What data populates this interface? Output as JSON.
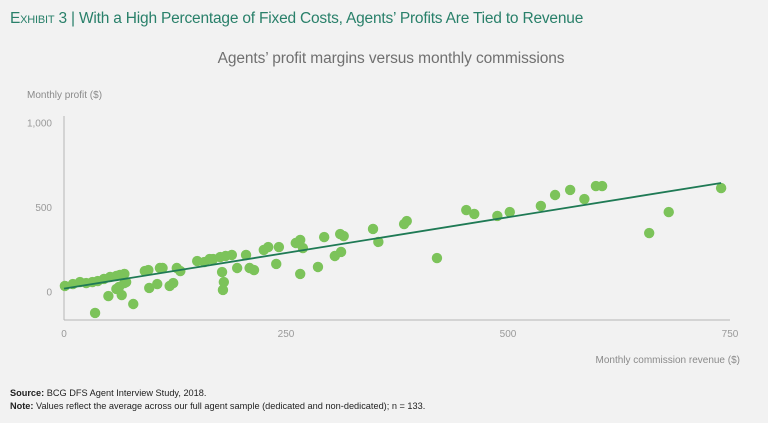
{
  "header": {
    "exhibit_label": "Exhibit 3",
    "separator": "|",
    "exhibit_title": "With a High Percentage of Fixed Costs, Agents’ Profits Are Tied to Revenue"
  },
  "footer": {
    "source_label": "Source:",
    "source_text": " BCG DFS Agent Interview Study, 2018.",
    "note_label": "Note:",
    "note_text": " Values reflect the average across our full agent sample (dedicated and non-dedicated); n = 133."
  },
  "colors": {
    "title": "#29806a",
    "points": "#7cc35a",
    "trendline": "#1f7a55",
    "axis": "#b5b5b5",
    "background": "#f2f2f2"
  },
  "chart_data": {
    "type": "scatter",
    "title": "Agents’ profit margins versus monthly commissions",
    "xlabel": "Monthly commission revenue ($)",
    "ylabel": "Monthly profit ($)",
    "xlim": [
      0,
      750
    ],
    "ylim": [
      -160,
      1000
    ],
    "xticks": [
      0,
      250,
      500,
      750
    ],
    "xtick_labels": [
      "0",
      "250",
      "500",
      "750"
    ],
    "yticks": [
      0,
      500,
      1000
    ],
    "ytick_labels": [
      "0",
      "500",
      "1,000"
    ],
    "grid": false,
    "legend": "none",
    "trendline": {
      "x": [
        0,
        740
      ],
      "y": [
        20,
        645
      ]
    },
    "points": [
      {
        "x": 1,
        "y": 36
      },
      {
        "x": 10,
        "y": 47
      },
      {
        "x": 18,
        "y": 59
      },
      {
        "x": 25,
        "y": 53
      },
      {
        "x": 32,
        "y": 59
      },
      {
        "x": 38,
        "y": 65
      },
      {
        "x": 45,
        "y": 77
      },
      {
        "x": 52,
        "y": 89
      },
      {
        "x": 59,
        "y": 95
      },
      {
        "x": 63,
        "y": 101
      },
      {
        "x": 68,
        "y": 107
      },
      {
        "x": 50,
        "y": -24
      },
      {
        "x": 65,
        "y": -18
      },
      {
        "x": 35,
        "y": -124
      },
      {
        "x": 78,
        "y": -71
      },
      {
        "x": 59,
        "y": 18
      },
      {
        "x": 62,
        "y": 30
      },
      {
        "x": 68,
        "y": 53
      },
      {
        "x": 70,
        "y": 59
      },
      {
        "x": 91,
        "y": 124
      },
      {
        "x": 95,
        "y": 130
      },
      {
        "x": 108,
        "y": 142
      },
      {
        "x": 111,
        "y": 142
      },
      {
        "x": 96,
        "y": 24
      },
      {
        "x": 105,
        "y": 47
      },
      {
        "x": 119,
        "y": 36
      },
      {
        "x": 123,
        "y": 53
      },
      {
        "x": 127,
        "y": 142
      },
      {
        "x": 131,
        "y": 124
      },
      {
        "x": 150,
        "y": 183
      },
      {
        "x": 158,
        "y": 177
      },
      {
        "x": 164,
        "y": 195
      },
      {
        "x": 168,
        "y": 195
      },
      {
        "x": 176,
        "y": 207
      },
      {
        "x": 182,
        "y": 213
      },
      {
        "x": 189,
        "y": 219
      },
      {
        "x": 178,
        "y": 118
      },
      {
        "x": 180,
        "y": 59
      },
      {
        "x": 179,
        "y": 12
      },
      {
        "x": 195,
        "y": 142
      },
      {
        "x": 205,
        "y": 219
      },
      {
        "x": 209,
        "y": 142
      },
      {
        "x": 214,
        "y": 130
      },
      {
        "x": 225,
        "y": 249
      },
      {
        "x": 230,
        "y": 266
      },
      {
        "x": 242,
        "y": 266
      },
      {
        "x": 239,
        "y": 166
      },
      {
        "x": 261,
        "y": 290
      },
      {
        "x": 266,
        "y": 308
      },
      {
        "x": 269,
        "y": 260
      },
      {
        "x": 266,
        "y": 107
      },
      {
        "x": 286,
        "y": 148
      },
      {
        "x": 293,
        "y": 325
      },
      {
        "x": 305,
        "y": 213
      },
      {
        "x": 311,
        "y": 343
      },
      {
        "x": 315,
        "y": 331
      },
      {
        "x": 312,
        "y": 237
      },
      {
        "x": 348,
        "y": 373
      },
      {
        "x": 354,
        "y": 296
      },
      {
        "x": 383,
        "y": 402
      },
      {
        "x": 386,
        "y": 420
      },
      {
        "x": 420,
        "y": 201
      },
      {
        "x": 453,
        "y": 485
      },
      {
        "x": 462,
        "y": 462
      },
      {
        "x": 488,
        "y": 450
      },
      {
        "x": 502,
        "y": 473
      },
      {
        "x": 537,
        "y": 509
      },
      {
        "x": 553,
        "y": 574
      },
      {
        "x": 570,
        "y": 604
      },
      {
        "x": 586,
        "y": 550
      },
      {
        "x": 599,
        "y": 627
      },
      {
        "x": 606,
        "y": 627
      },
      {
        "x": 659,
        "y": 349
      },
      {
        "x": 681,
        "y": 473
      },
      {
        "x": 740,
        "y": 615
      }
    ]
  }
}
